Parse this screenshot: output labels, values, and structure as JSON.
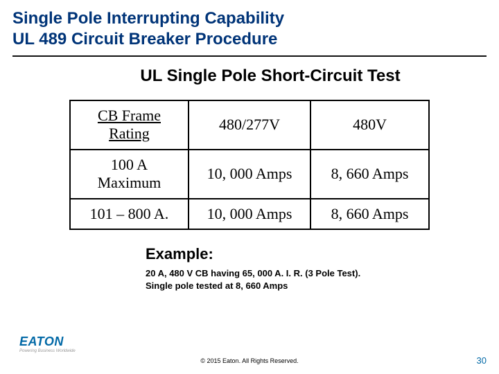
{
  "title": {
    "line1": "Single Pole Interrupting Capability",
    "line2": "UL 489 Circuit Breaker Procedure",
    "color": "#003478",
    "fontsize": 24
  },
  "subtitle": {
    "text": "UL Single Pole Short-Circuit Test",
    "fontsize": 24
  },
  "table": {
    "columns": [
      "CB Frame Rating",
      "480/277V",
      "480V"
    ],
    "rows": [
      {
        "label_top": "CB Frame",
        "label_bottom": "Rating",
        "c2": "480/277V",
        "c3": "480V",
        "underline_c1": true
      },
      {
        "label_top": "100 A",
        "label_bottom": "Maximum",
        "c2": "10, 000 Amps",
        "c3": "8, 660 Amps",
        "underline_c1": false
      },
      {
        "label_single": "101 – 800 A.",
        "c2": "10, 000 Amps",
        "c3": "8, 660 Amps"
      }
    ],
    "border_color": "#000000",
    "font": "Times New Roman",
    "fontsize": 22
  },
  "example": {
    "heading": "Example:",
    "line1": "20 A, 480 V CB having 65, 000 A. I. R. (3 Pole Test).",
    "line2": "Single pole tested at 8, 660 Amps",
    "heading_fontsize": 22,
    "body_fontsize": 13
  },
  "footer": {
    "copyright": "© 2015 Eaton. All Rights Reserved.",
    "page_number": "30",
    "logo_text": "EATON",
    "logo_tagline": "Powering Business Worldwide"
  },
  "colors": {
    "title_blue": "#003478",
    "accent_blue": "#0068a6",
    "background": "#ffffff",
    "text": "#000000"
  }
}
